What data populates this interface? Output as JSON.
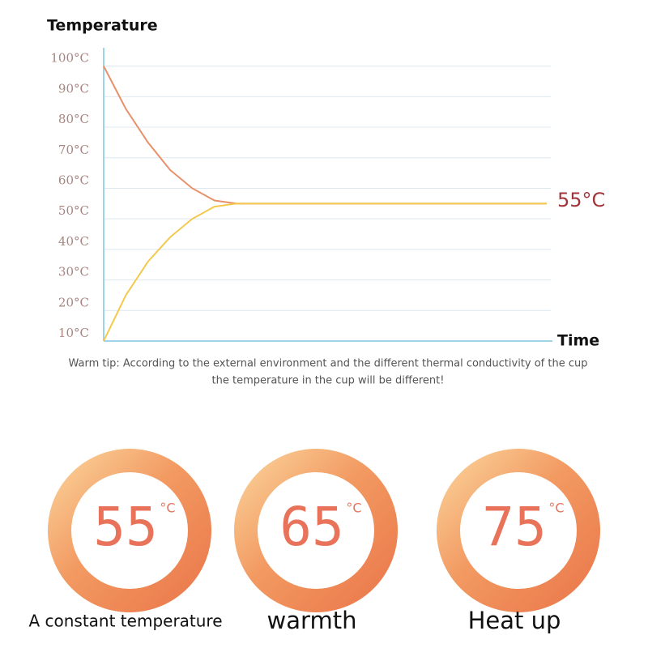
{
  "chart_data": {
    "type": "line",
    "title": "Temperature",
    "x_label": "Time",
    "annotation": "55°C",
    "categories": [
      null,
      null,
      null,
      null,
      null,
      null,
      null,
      null,
      null,
      null,
      null,
      null,
      null,
      null,
      null,
      null,
      null,
      null,
      null,
      null,
      null
    ],
    "series": [
      {
        "color": "#e8906a",
        "values": [
          100,
          86,
          75,
          66,
          60,
          56,
          55,
          55,
          55,
          55,
          55,
          55,
          55,
          55,
          55,
          55,
          55,
          55,
          55,
          55,
          55
        ]
      },
      {
        "color": "#f2c94c",
        "values": [
          10,
          25,
          36,
          44,
          50,
          54,
          55,
          55,
          55,
          55,
          55,
          55,
          55,
          55,
          55,
          55,
          55,
          55,
          55,
          55,
          55
        ]
      }
    ],
    "ylim": [
      10,
      106
    ],
    "yticks": [
      {
        "value": 10,
        "label": "10°C"
      },
      {
        "value": 20,
        "label": "20°C"
      },
      {
        "value": 30,
        "label": "30°C"
      },
      {
        "value": 40,
        "label": "40°C"
      },
      {
        "value": 50,
        "label": "50°C"
      },
      {
        "value": 60,
        "label": "60°C"
      },
      {
        "value": 70,
        "label": "70°C"
      },
      {
        "value": 80,
        "label": "80°C"
      },
      {
        "value": 90,
        "label": "90°C"
      },
      {
        "value": 100,
        "label": "100°C"
      }
    ],
    "grid": true
  },
  "tip": [
    "Warm tip: According to the external environment and the different thermal conductivity of the cup",
    "the temperature in the cup will be different!"
  ],
  "modes": [
    {
      "value": 55,
      "unit": "°C",
      "caption": "A constant temperature"
    },
    {
      "value": 65,
      "unit": "°C",
      "caption": "warmth"
    },
    {
      "value": 75,
      "unit": "°C",
      "caption": "Heat up"
    }
  ]
}
